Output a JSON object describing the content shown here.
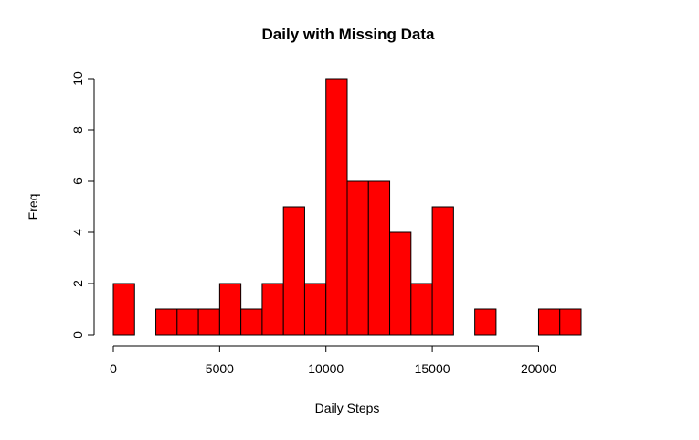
{
  "chart_data": {
    "type": "bar",
    "title": "Daily with Missing Data",
    "xlabel": "Daily Steps",
    "ylabel": "Freq",
    "bar_color": "#ff0000",
    "bin_width": 1000,
    "bins": [
      {
        "start": 0,
        "end": 1000,
        "count": 2
      },
      {
        "start": 1000,
        "end": 2000,
        "count": 0
      },
      {
        "start": 2000,
        "end": 3000,
        "count": 1
      },
      {
        "start": 3000,
        "end": 4000,
        "count": 1
      },
      {
        "start": 4000,
        "end": 5000,
        "count": 1
      },
      {
        "start": 5000,
        "end": 6000,
        "count": 2
      },
      {
        "start": 6000,
        "end": 7000,
        "count": 1
      },
      {
        "start": 7000,
        "end": 8000,
        "count": 2
      },
      {
        "start": 8000,
        "end": 9000,
        "count": 5
      },
      {
        "start": 9000,
        "end": 10000,
        "count": 2
      },
      {
        "start": 10000,
        "end": 11000,
        "count": 10
      },
      {
        "start": 11000,
        "end": 12000,
        "count": 6
      },
      {
        "start": 12000,
        "end": 13000,
        "count": 6
      },
      {
        "start": 13000,
        "end": 14000,
        "count": 4
      },
      {
        "start": 14000,
        "end": 15000,
        "count": 2
      },
      {
        "start": 15000,
        "end": 16000,
        "count": 5
      },
      {
        "start": 16000,
        "end": 17000,
        "count": 0
      },
      {
        "start": 17000,
        "end": 18000,
        "count": 1
      },
      {
        "start": 18000,
        "end": 19000,
        "count": 0
      },
      {
        "start": 19000,
        "end": 20000,
        "count": 0
      },
      {
        "start": 20000,
        "end": 21000,
        "count": 1
      },
      {
        "start": 21000,
        "end": 22000,
        "count": 1
      }
    ],
    "xlim": [
      0,
      22000
    ],
    "ylim": [
      0,
      10
    ],
    "x_ticks": [
      0,
      5000,
      10000,
      15000,
      20000
    ],
    "y_ticks": [
      0,
      2,
      4,
      6,
      8,
      10
    ],
    "grid": false,
    "legend": "none"
  }
}
